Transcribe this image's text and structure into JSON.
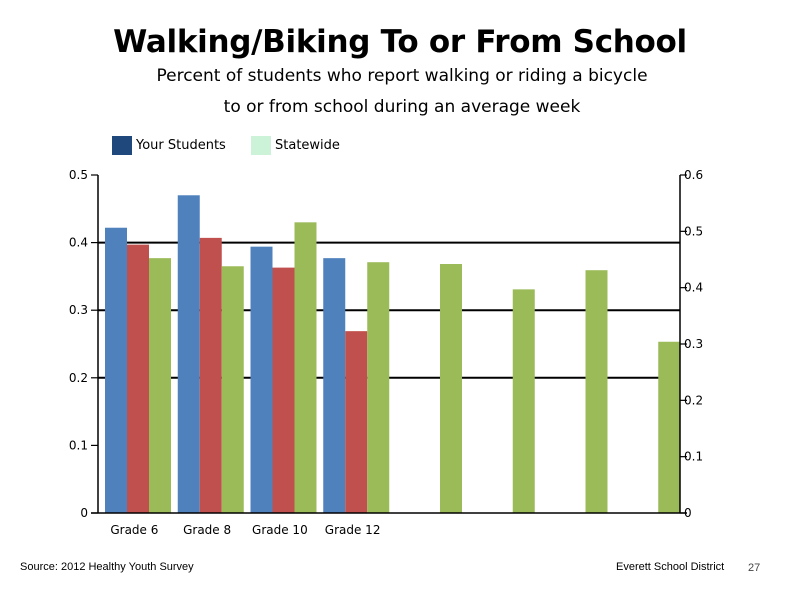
{
  "page": {
    "title": "Walking/Biking To or From School",
    "subtitle_line1": "Percent of students who report walking or riding a bicycle",
    "subtitle_line2": "to or from school during an average week",
    "source": "Source: 2012 Healthy Youth Survey",
    "district": "Everett School District",
    "page_number": "27"
  },
  "colors": {
    "your_students_legend": "#1f497d",
    "statewide_legend": "#ccf2d8",
    "series_blue": "#4f81bd",
    "series_red": "#c0504d",
    "series_green": "#9bbb59"
  },
  "chart_data": {
    "type": "bar",
    "legend": [
      "Your Students",
      "Statewide"
    ],
    "legend_placement": "top-left",
    "categories": [
      "Grade 6",
      "Grade 8",
      "Grade 10",
      "Grade 12",
      "",
      "",
      "",
      ""
    ],
    "left_axis": {
      "ylim": [
        0,
        0.5
      ],
      "ticks": [
        "0",
        "0.1",
        "0.2",
        "0.3",
        "0.4",
        "0.5"
      ]
    },
    "right_axis": {
      "ylim": [
        0,
        0.6
      ],
      "ticks": [
        "0",
        "0.1",
        "0.2",
        "0.3",
        "0.4",
        "0.5",
        "0.6"
      ]
    },
    "grid": {
      "horizontal": [
        0.2,
        0.3,
        0.4
      ]
    },
    "series": [
      {
        "axis": "left",
        "color": "#4f81bd",
        "values": [
          0.422,
          0.47,
          0.394,
          0.377,
          null,
          null,
          null,
          null
        ]
      },
      {
        "axis": "left",
        "color": "#c0504d",
        "values": [
          0.397,
          0.407,
          0.363,
          0.269,
          null,
          null,
          null,
          null
        ]
      },
      {
        "axis": "left",
        "color": "#9bbb59",
        "values": [
          0.377,
          0.365,
          0.43,
          0.371,
          null,
          null,
          null,
          null
        ]
      },
      {
        "axis": "right",
        "color": "#9bbb59",
        "values": [
          null,
          null,
          null,
          null,
          0.442,
          0.397,
          0.431,
          0.304
        ]
      }
    ]
  }
}
